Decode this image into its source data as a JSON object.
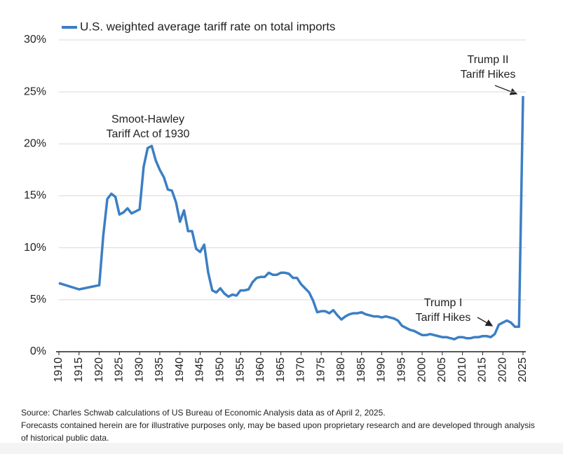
{
  "chart_data": {
    "type": "line",
    "legend": "U.S. weighted average tariff rate on total imports",
    "color": "#3b7fc4",
    "x": [
      1910,
      1915,
      1920,
      1921,
      1922,
      1923,
      1924,
      1925,
      1926,
      1927,
      1928,
      1929,
      1930,
      1931,
      1932,
      1933,
      1934,
      1935,
      1936,
      1937,
      1938,
      1939,
      1940,
      1941,
      1942,
      1943,
      1944,
      1945,
      1946,
      1947,
      1948,
      1949,
      1950,
      1951,
      1952,
      1953,
      1954,
      1955,
      1956,
      1957,
      1958,
      1959,
      1960,
      1961,
      1962,
      1963,
      1964,
      1965,
      1966,
      1967,
      1968,
      1969,
      1970,
      1971,
      1972,
      1973,
      1974,
      1975,
      1976,
      1977,
      1978,
      1979,
      1980,
      1981,
      1982,
      1983,
      1984,
      1985,
      1986,
      1987,
      1988,
      1989,
      1990,
      1991,
      1992,
      1993,
      1994,
      1995,
      1996,
      1997,
      1998,
      1999,
      2000,
      2001,
      2002,
      2003,
      2004,
      2005,
      2006,
      2007,
      2008,
      2009,
      2010,
      2011,
      2012,
      2013,
      2014,
      2015,
      2016,
      2017,
      2018,
      2019,
      2020,
      2021,
      2022,
      2023,
      2024,
      2025
    ],
    "values": [
      6.6,
      6.0,
      6.4,
      11.2,
      14.7,
      15.2,
      14.9,
      13.2,
      13.4,
      13.8,
      13.3,
      13.5,
      13.7,
      17.8,
      19.6,
      19.8,
      18.4,
      17.5,
      16.8,
      15.6,
      15.5,
      14.4,
      12.5,
      13.6,
      11.6,
      11.6,
      9.9,
      9.6,
      10.3,
      7.6,
      5.9,
      5.7,
      6.1,
      5.6,
      5.3,
      5.5,
      5.4,
      5.9,
      5.9,
      6.0,
      6.7,
      7.1,
      7.2,
      7.2,
      7.6,
      7.4,
      7.4,
      7.6,
      7.6,
      7.5,
      7.1,
      7.1,
      6.5,
      6.1,
      5.7,
      4.9,
      3.8,
      3.9,
      3.9,
      3.7,
      4.0,
      3.5,
      3.1,
      3.4,
      3.6,
      3.7,
      3.7,
      3.8,
      3.6,
      3.5,
      3.4,
      3.4,
      3.3,
      3.4,
      3.3,
      3.2,
      3.0,
      2.5,
      2.3,
      2.1,
      2.0,
      1.8,
      1.6,
      1.6,
      1.7,
      1.6,
      1.5,
      1.4,
      1.4,
      1.3,
      1.2,
      1.4,
      1.4,
      1.3,
      1.3,
      1.4,
      1.4,
      1.5,
      1.5,
      1.4,
      1.7,
      2.6,
      2.8,
      3.0,
      2.8,
      2.4,
      2.4,
      24.6
    ],
    "xlim": [
      1910,
      2025
    ],
    "xticks": [
      1910,
      1915,
      1920,
      1925,
      1930,
      1935,
      1940,
      1945,
      1950,
      1955,
      1960,
      1965,
      1970,
      1975,
      1980,
      1985,
      1990,
      1995,
      2000,
      2005,
      2010,
      2015,
      2020,
      2025
    ],
    "ylim": [
      0,
      30
    ],
    "yticks": [
      {
        "value": 0,
        "label": "0%"
      },
      {
        "value": 5,
        "label": "5%"
      },
      {
        "value": 10,
        "label": "10%"
      },
      {
        "value": 15,
        "label": "15%"
      },
      {
        "value": 20,
        "label": "20%"
      },
      {
        "value": 25,
        "label": "25%"
      },
      {
        "value": 30,
        "label": "30%"
      }
    ],
    "grid": true,
    "annotations": [
      [
        "Smoot-Hawley",
        "Tariff Act of 1930"
      ],
      [
        "Trump II",
        "Tariff Hikes"
      ],
      [
        "Trump I",
        "Tariff Hikes"
      ]
    ],
    "footnotes": [
      "Source: Charles Schwab calculations of US Bureau of Economic Analysis data as of April 2, 2025.",
      "Forecasts contained herein are for illustrative purposes only, may be based upon proprietary research and are developed through analysis",
      "of historical public data."
    ]
  }
}
